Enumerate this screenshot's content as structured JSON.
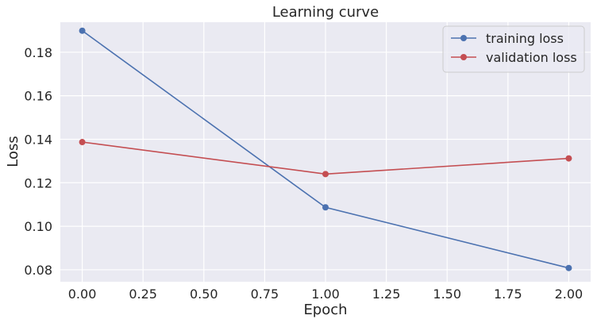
{
  "chart_data": {
    "type": "line",
    "title": "Learning curve",
    "xlabel": "Epoch",
    "ylabel": "Loss",
    "x": [
      0.0,
      1.0,
      2.0
    ],
    "xlim": [
      -0.09,
      2.09
    ],
    "ylim": [
      0.0745,
      0.1938
    ],
    "xticks": [
      0.0,
      0.25,
      0.5,
      0.75,
      1.0,
      1.25,
      1.5,
      1.75,
      2.0
    ],
    "xtick_labels": [
      "0.00",
      "0.25",
      "0.50",
      "0.75",
      "1.00",
      "1.25",
      "1.50",
      "1.75",
      "2.00"
    ],
    "yticks": [
      0.08,
      0.1,
      0.12,
      0.14,
      0.16,
      0.18
    ],
    "ytick_labels": [
      "0.08",
      "0.10",
      "0.12",
      "0.14",
      "0.16",
      "0.18"
    ],
    "grid": true,
    "legend_position": "top-right",
    "series": [
      {
        "name": "training loss",
        "values": [
          0.1899,
          0.1087,
          0.0808
        ],
        "color": "#4c72b0",
        "marker": "circle"
      },
      {
        "name": "validation loss",
        "values": [
          0.1387,
          0.124,
          0.1312
        ],
        "color": "#c44e52",
        "marker": "circle"
      }
    ],
    "background_color": "#eaeaf2",
    "grid_color": "#ffffff"
  }
}
